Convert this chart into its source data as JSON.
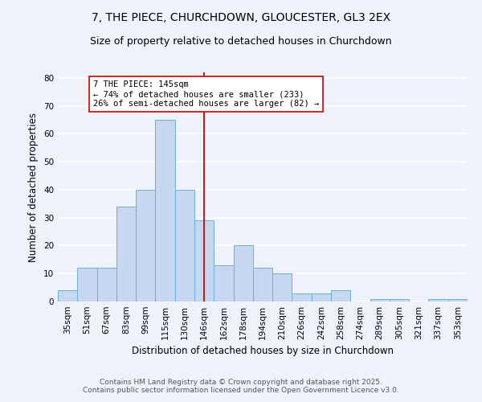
{
  "title_line1": "7, THE PIECE, CHURCHDOWN, GLOUCESTER, GL3 2EX",
  "title_line2": "Size of property relative to detached houses in Churchdown",
  "xlabel": "Distribution of detached houses by size in Churchdown",
  "ylabel": "Number of detached properties",
  "footer_line1": "Contains HM Land Registry data © Crown copyright and database right 2025.",
  "footer_line2": "Contains public sector information licensed under the Open Government Licence v3.0.",
  "annotation_line1": "7 THE PIECE: 145sqm",
  "annotation_line2": "← 74% of detached houses are smaller (233)",
  "annotation_line3": "26% of semi-detached houses are larger (82) →",
  "bar_labels": [
    "35sqm",
    "51sqm",
    "67sqm",
    "83sqm",
    "99sqm",
    "115sqm",
    "130sqm",
    "146sqm",
    "162sqm",
    "178sqm",
    "194sqm",
    "210sqm",
    "226sqm",
    "242sqm",
    "258sqm",
    "274sqm",
    "289sqm",
    "305sqm",
    "321sqm",
    "337sqm",
    "353sqm"
  ],
  "bar_values": [
    4,
    12,
    12,
    34,
    40,
    65,
    40,
    29,
    13,
    20,
    12,
    10,
    3,
    3,
    4,
    0,
    1,
    1,
    0,
    1,
    1
  ],
  "bar_color": "#c5d8f0",
  "bar_edgecolor": "#6aaed6",
  "background_color": "#eef2fb",
  "grid_color": "#ffffff",
  "vline_x_index": 7,
  "vline_color": "#cc0000",
  "ylim": [
    0,
    82
  ],
  "yticks": [
    0,
    10,
    20,
    30,
    40,
    50,
    60,
    70,
    80
  ],
  "annotation_box_edgecolor": "#cc0000",
  "annotation_box_facecolor": "#ffffff",
  "title_fontsize": 10,
  "subtitle_fontsize": 9,
  "axis_label_fontsize": 8.5,
  "tick_fontsize": 7.5,
  "footer_fontsize": 6.5,
  "annotation_fontsize": 7.5
}
